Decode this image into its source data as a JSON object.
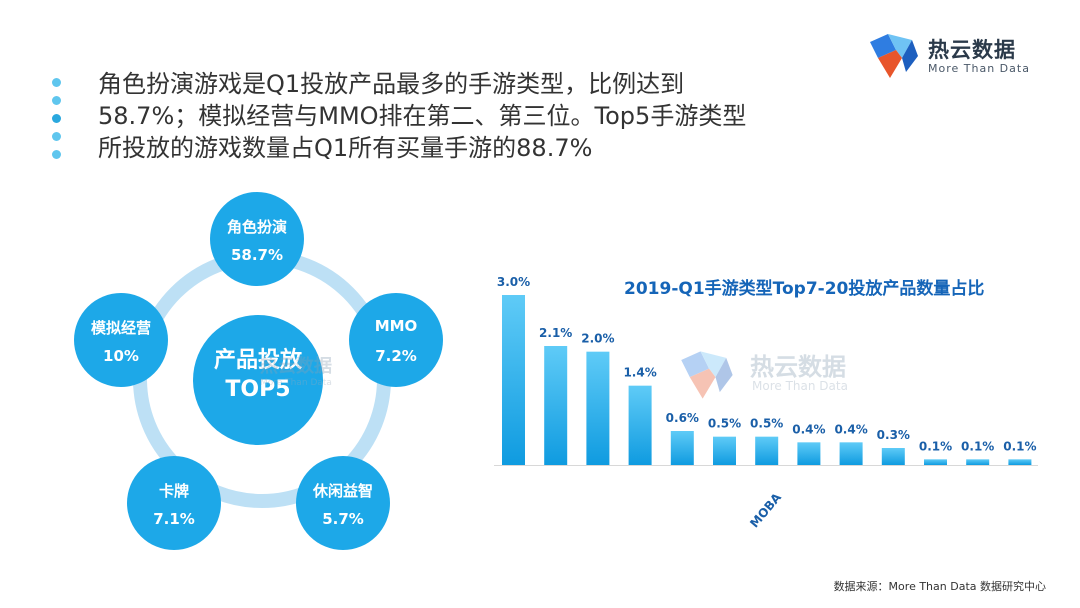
{
  "logo": {
    "name": "热云数据",
    "tagline": "More Than Data"
  },
  "summary": {
    "lines": [
      "角色扮演游戏是Q1投放产品最多的手游类型，比例达到",
      "58.7%；模拟经营与MMO排在第二、第三位。Top5手游类型",
      "所投放的游戏数量占Q1所有买量手游的88.7%"
    ]
  },
  "diagram": {
    "center_line1": "产品投放",
    "center_line2": "TOP5",
    "nodes": [
      {
        "name": "角色扮演",
        "value": "58.7%"
      },
      {
        "name": "MMO",
        "value": "7.2%"
      },
      {
        "name": "休闲益智",
        "value": "5.7%"
      },
      {
        "name": "卡牌",
        "value": "7.1%"
      },
      {
        "name": "模拟经营",
        "value": "10%"
      }
    ]
  },
  "chart_data": {
    "type": "bar",
    "title": "2019-Q1手游类型Top7-20投放产品数量占比",
    "categories": [
      "",
      "",
      "",
      "",
      "",
      "",
      "MOBA",
      "",
      "",
      "",
      "",
      "",
      ""
    ],
    "values": [
      3.0,
      2.1,
      2.0,
      1.4,
      0.6,
      0.5,
      0.5,
      0.4,
      0.4,
      0.3,
      0.1,
      0.1,
      0.1
    ],
    "value_labels": [
      "3.0%",
      "2.1%",
      "2.0%",
      "1.4%",
      "0.6%",
      "0.5%",
      "0.5%",
      "0.4%",
      "0.4%",
      "0.3%",
      "0.1%",
      "0.1%",
      "0.1%"
    ],
    "ylim": [
      0,
      3.0
    ],
    "grid": false,
    "colors": {
      "bar_top": "#5fcbf7",
      "bar_bottom": "#0f9be0",
      "label": "#1a5fa8",
      "axis": "#d8d8d8"
    }
  },
  "source": "数据来源：More Than Data 数据研究中心"
}
